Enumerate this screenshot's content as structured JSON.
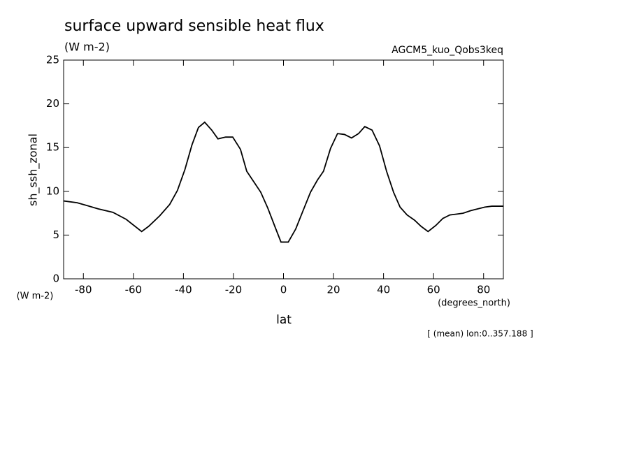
{
  "chart_data": {
    "type": "line",
    "title": "surface upward sensible heat flux",
    "subtitle": "(W m-2)",
    "experiment": "AGCM5_kuo_Qobs3keq",
    "ylabel": "sh_ssh_zonal",
    "y_units": "(W m-2)",
    "xlabel": "lat",
    "x_units": "(degrees_north)",
    "note": "[ (mean) lon:0..357.188 ]",
    "x": [
      -87.9,
      -82.5,
      -74.1,
      -68.2,
      -62.9,
      -56.7,
      -53.9,
      -49.5,
      -45.5,
      -42.4,
      -39.4,
      -36.6,
      -34.0,
      -31.5,
      -28.7,
      -26.2,
      -23.1,
      -20.3,
      -17.2,
      -14.7,
      -9.1,
      -6.3,
      -3.2,
      -1.0,
      1.9,
      4.9,
      7.7,
      10.8,
      13.6,
      16.0,
      18.8,
      21.6,
      24.4,
      27.2,
      30.0,
      32.5,
      35.4,
      38.4,
      41.2,
      44.0,
      46.6,
      49.4,
      52.4,
      55.0,
      57.8,
      60.9,
      63.7,
      66.5,
      69.3,
      71.8,
      74.9,
      77.7,
      80.5,
      83.3,
      87.9
    ],
    "series": [
      {
        "color": "#000000",
        "values": [
          8.9,
          8.7,
          8.0,
          7.6,
          6.8,
          5.4,
          6.0,
          7.2,
          8.5,
          10.1,
          12.5,
          15.3,
          17.3,
          17.9,
          17.0,
          16.0,
          16.2,
          16.2,
          14.8,
          12.3,
          9.9,
          8.1,
          5.8,
          4.2,
          4.2,
          5.7,
          7.7,
          9.9,
          11.3,
          12.3,
          14.9,
          16.6,
          16.5,
          16.1,
          16.6,
          17.4,
          17.0,
          15.2,
          12.3,
          9.9,
          8.2,
          7.3,
          6.7,
          6.0,
          5.4,
          6.1,
          6.9,
          7.3,
          7.4,
          7.5,
          7.8,
          8.0,
          8.2,
          8.3,
          8.3
        ]
      }
    ],
    "xlim": [
      -87.9,
      87.9
    ],
    "ylim": [
      0,
      25
    ],
    "xticks": [
      -80,
      -60,
      -40,
      -20,
      0,
      20,
      40,
      60,
      80
    ],
    "yticks": [
      0,
      5,
      10,
      15,
      20,
      25
    ],
    "grid": false
  }
}
